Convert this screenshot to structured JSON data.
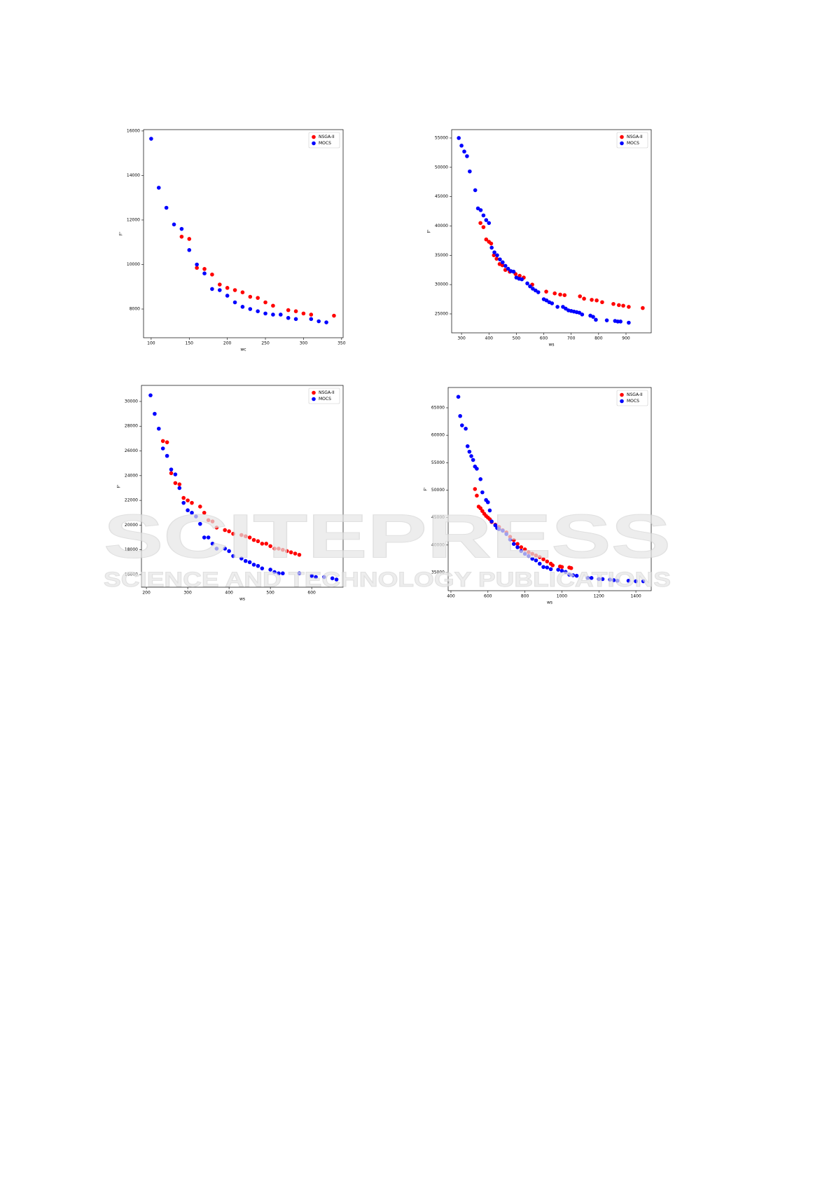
{
  "watermark": {
    "brand": "SCITEPRESS",
    "tagline": "SCIENCE AND TECHNOLOGY PUBLICATIONS"
  },
  "chart_data": [
    {
      "type": "scatter",
      "x_label": "wc",
      "y_label": "F'",
      "xlim": [
        90,
        352
      ],
      "ylim": [
        6710,
        16060
      ],
      "xticks": [
        100,
        150,
        200,
        250,
        300,
        350
      ],
      "yticks": [
        8000,
        10000,
        12000,
        14000,
        16000
      ],
      "legend": "upper right",
      "series": [
        {
          "name": "NSGA-II",
          "color": "#ff0000",
          "x": [
            140,
            150,
            160,
            170,
            180,
            190,
            200,
            210,
            220,
            230,
            240,
            250,
            260,
            280,
            290,
            300,
            310,
            340
          ],
          "values": [
            11250,
            11150,
            9850,
            9800,
            9550,
            9100,
            8950,
            8850,
            8750,
            8550,
            8500,
            8300,
            8150,
            7950,
            7900,
            7800,
            7750,
            7700
          ]
        },
        {
          "name": "MOCS",
          "color": "#0000ff",
          "x": [
            100,
            110,
            120,
            130,
            140,
            150,
            160,
            170,
            180,
            190,
            200,
            210,
            220,
            230,
            240,
            250,
            260,
            270,
            280,
            290,
            310,
            320,
            330
          ],
          "values": [
            15650,
            13450,
            12550,
            11800,
            11600,
            10650,
            10000,
            9600,
            8900,
            8850,
            8600,
            8300,
            8100,
            8000,
            7900,
            7800,
            7750,
            7750,
            7600,
            7550,
            7550,
            7450,
            7400
          ]
        }
      ]
    },
    {
      "type": "scatter",
      "x_label": "ws",
      "y_label": "F'",
      "xlim": [
        264,
        992
      ],
      "ylim": [
        21770,
        56430
      ],
      "xticks": [
        300,
        400,
        500,
        600,
        700,
        800,
        900
      ],
      "yticks": [
        25000,
        30000,
        35000,
        40000,
        45000,
        50000,
        55000
      ],
      "legend": "upper right",
      "series": [
        {
          "name": "NSGA-II",
          "color": "#ff0000",
          "x": [
            369,
            380,
            390,
            400,
            408,
            418,
            428,
            439,
            449,
            460,
            476,
            497,
            512,
            527,
            558,
            609,
            640,
            660,
            676,
            732,
            747,
            775,
            793,
            813,
            854,
            874,
            890,
            910,
            961
          ],
          "values": [
            40500,
            39800,
            37700,
            37300,
            37000,
            35000,
            34400,
            33500,
            33300,
            32500,
            32200,
            31800,
            31500,
            31200,
            30000,
            28800,
            28500,
            28300,
            28200,
            28000,
            27600,
            27400,
            27300,
            27000,
            26700,
            26500,
            26400,
            26200,
            26000
          ]
        },
        {
          "name": "MOCS",
          "color": "#0000ff",
          "x": [
            290,
            300,
            310,
            320,
            330,
            350,
            360,
            370,
            380,
            390,
            400,
            410,
            420,
            430,
            440,
            450,
            460,
            470,
            480,
            490,
            500,
            510,
            520,
            540,
            550,
            560,
            570,
            580,
            600,
            610,
            620,
            630,
            650,
            670,
            680,
            690,
            700,
            710,
            720,
            730,
            740,
            770,
            780,
            790,
            830,
            860,
            870,
            880,
            910
          ],
          "values": [
            55000,
            53700,
            52700,
            51900,
            49300,
            46100,
            43000,
            42700,
            41800,
            41000,
            40500,
            36300,
            35500,
            35000,
            34300,
            33800,
            33200,
            32700,
            32300,
            32200,
            31200,
            31000,
            30900,
            30200,
            29700,
            29300,
            29000,
            28700,
            27500,
            27300,
            27000,
            26800,
            26200,
            26200,
            25900,
            25600,
            25500,
            25400,
            25300,
            25200,
            24900,
            24700,
            24500,
            24000,
            23900,
            23800,
            23700,
            23700,
            23500
          ]
        }
      ]
    },
    {
      "type": "scatter",
      "x_label": "ws",
      "y_label": "F'",
      "xlim": [
        188,
        676
      ],
      "ylim": [
        14980,
        31300
      ],
      "xticks": [
        200,
        300,
        400,
        500,
        600
      ],
      "yticks": [
        16000,
        18000,
        20000,
        22000,
        24000,
        26000,
        28000,
        30000
      ],
      "legend": "upper right",
      "series": [
        {
          "name": "NSGA-II",
          "color": "#ff0000",
          "x": [
            240,
            250,
            260,
            270,
            280,
            290,
            300,
            310,
            330,
            340,
            350,
            360,
            370,
            390,
            400,
            410,
            430,
            440,
            450,
            460,
            470,
            480,
            490,
            500,
            510,
            520,
            530,
            540,
            550,
            560,
            570
          ],
          "values": [
            26800,
            26700,
            24200,
            23400,
            23300,
            22200,
            22000,
            21800,
            21500,
            21000,
            20400,
            20300,
            19800,
            19600,
            19500,
            19300,
            19200,
            19100,
            19000,
            18800,
            18700,
            18500,
            18500,
            18300,
            18100,
            18100,
            18000,
            17900,
            17800,
            17700,
            17600
          ]
        },
        {
          "name": "MOCS",
          "color": "#0000ff",
          "x": [
            210,
            220,
            230,
            240,
            250,
            260,
            270,
            280,
            290,
            300,
            310,
            320,
            330,
            340,
            350,
            360,
            370,
            390,
            400,
            410,
            430,
            440,
            450,
            460,
            470,
            480,
            500,
            510,
            520,
            530,
            570,
            600,
            610,
            630,
            650,
            660
          ],
          "values": [
            30500,
            29000,
            27800,
            26200,
            25600,
            24500,
            24100,
            23000,
            21800,
            21200,
            21000,
            20700,
            20100,
            19000,
            19000,
            18500,
            18100,
            18100,
            17900,
            17500,
            17300,
            17100,
            17000,
            16800,
            16700,
            16500,
            16400,
            16200,
            16100,
            16100,
            16100,
            15900,
            15800,
            15800,
            15700,
            15600
          ]
        }
      ]
    },
    {
      "type": "scatter",
      "x_label": "ws",
      "y_label": "F'",
      "xlim": [
        385,
        1483
      ],
      "ylim": [
        31680,
        68700
      ],
      "xticks": [
        400,
        600,
        800,
        1000,
        1200,
        1400
      ],
      "yticks": [
        35000,
        40000,
        45000,
        50000,
        55000,
        60000,
        65000
      ],
      "legend": "upper right",
      "series": [
        {
          "name": "NSGA-II",
          "color": "#ff0000",
          "x": [
            530,
            540,
            550,
            560,
            570,
            580,
            590,
            600,
            610,
            620,
            640,
            660,
            680,
            700,
            720,
            740,
            760,
            780,
            800,
            820,
            840,
            860,
            880,
            900,
            920,
            940,
            950,
            990,
            1000,
            1040,
            1050
          ],
          "values": [
            50200,
            49000,
            47000,
            46700,
            46200,
            45700,
            45300,
            45000,
            44700,
            44200,
            43700,
            43300,
            42700,
            42300,
            41500,
            40900,
            40200,
            39600,
            39200,
            38700,
            38400,
            38100,
            37800,
            37400,
            37000,
            36600,
            36300,
            36100,
            36000,
            35900,
            35800
          ]
        },
        {
          "name": "MOCS",
          "color": "#0000ff",
          "x": [
            440,
            450,
            460,
            480,
            490,
            500,
            510,
            520,
            530,
            540,
            560,
            570,
            590,
            600,
            610,
            620,
            640,
            650,
            660,
            680,
            700,
            720,
            740,
            760,
            780,
            800,
            820,
            840,
            860,
            880,
            900,
            920,
            940,
            980,
            1000,
            1020,
            1040,
            1060,
            1080,
            1140,
            1160,
            1200,
            1220,
            1260,
            1280,
            1300,
            1360,
            1400,
            1440
          ],
          "values": [
            67000,
            63500,
            61800,
            61200,
            58000,
            57000,
            56200,
            55500,
            54300,
            53900,
            52000,
            49600,
            48200,
            47800,
            46300,
            44300,
            43600,
            43100,
            42900,
            42600,
            42000,
            41000,
            40200,
            39600,
            38900,
            38400,
            38000,
            37500,
            37200,
            36600,
            36000,
            35900,
            35600,
            35500,
            35300,
            35100,
            34600,
            34500,
            34400,
            34000,
            34000,
            33800,
            33800,
            33700,
            33600,
            33500,
            33500,
            33400,
            33400
          ]
        }
      ]
    }
  ]
}
